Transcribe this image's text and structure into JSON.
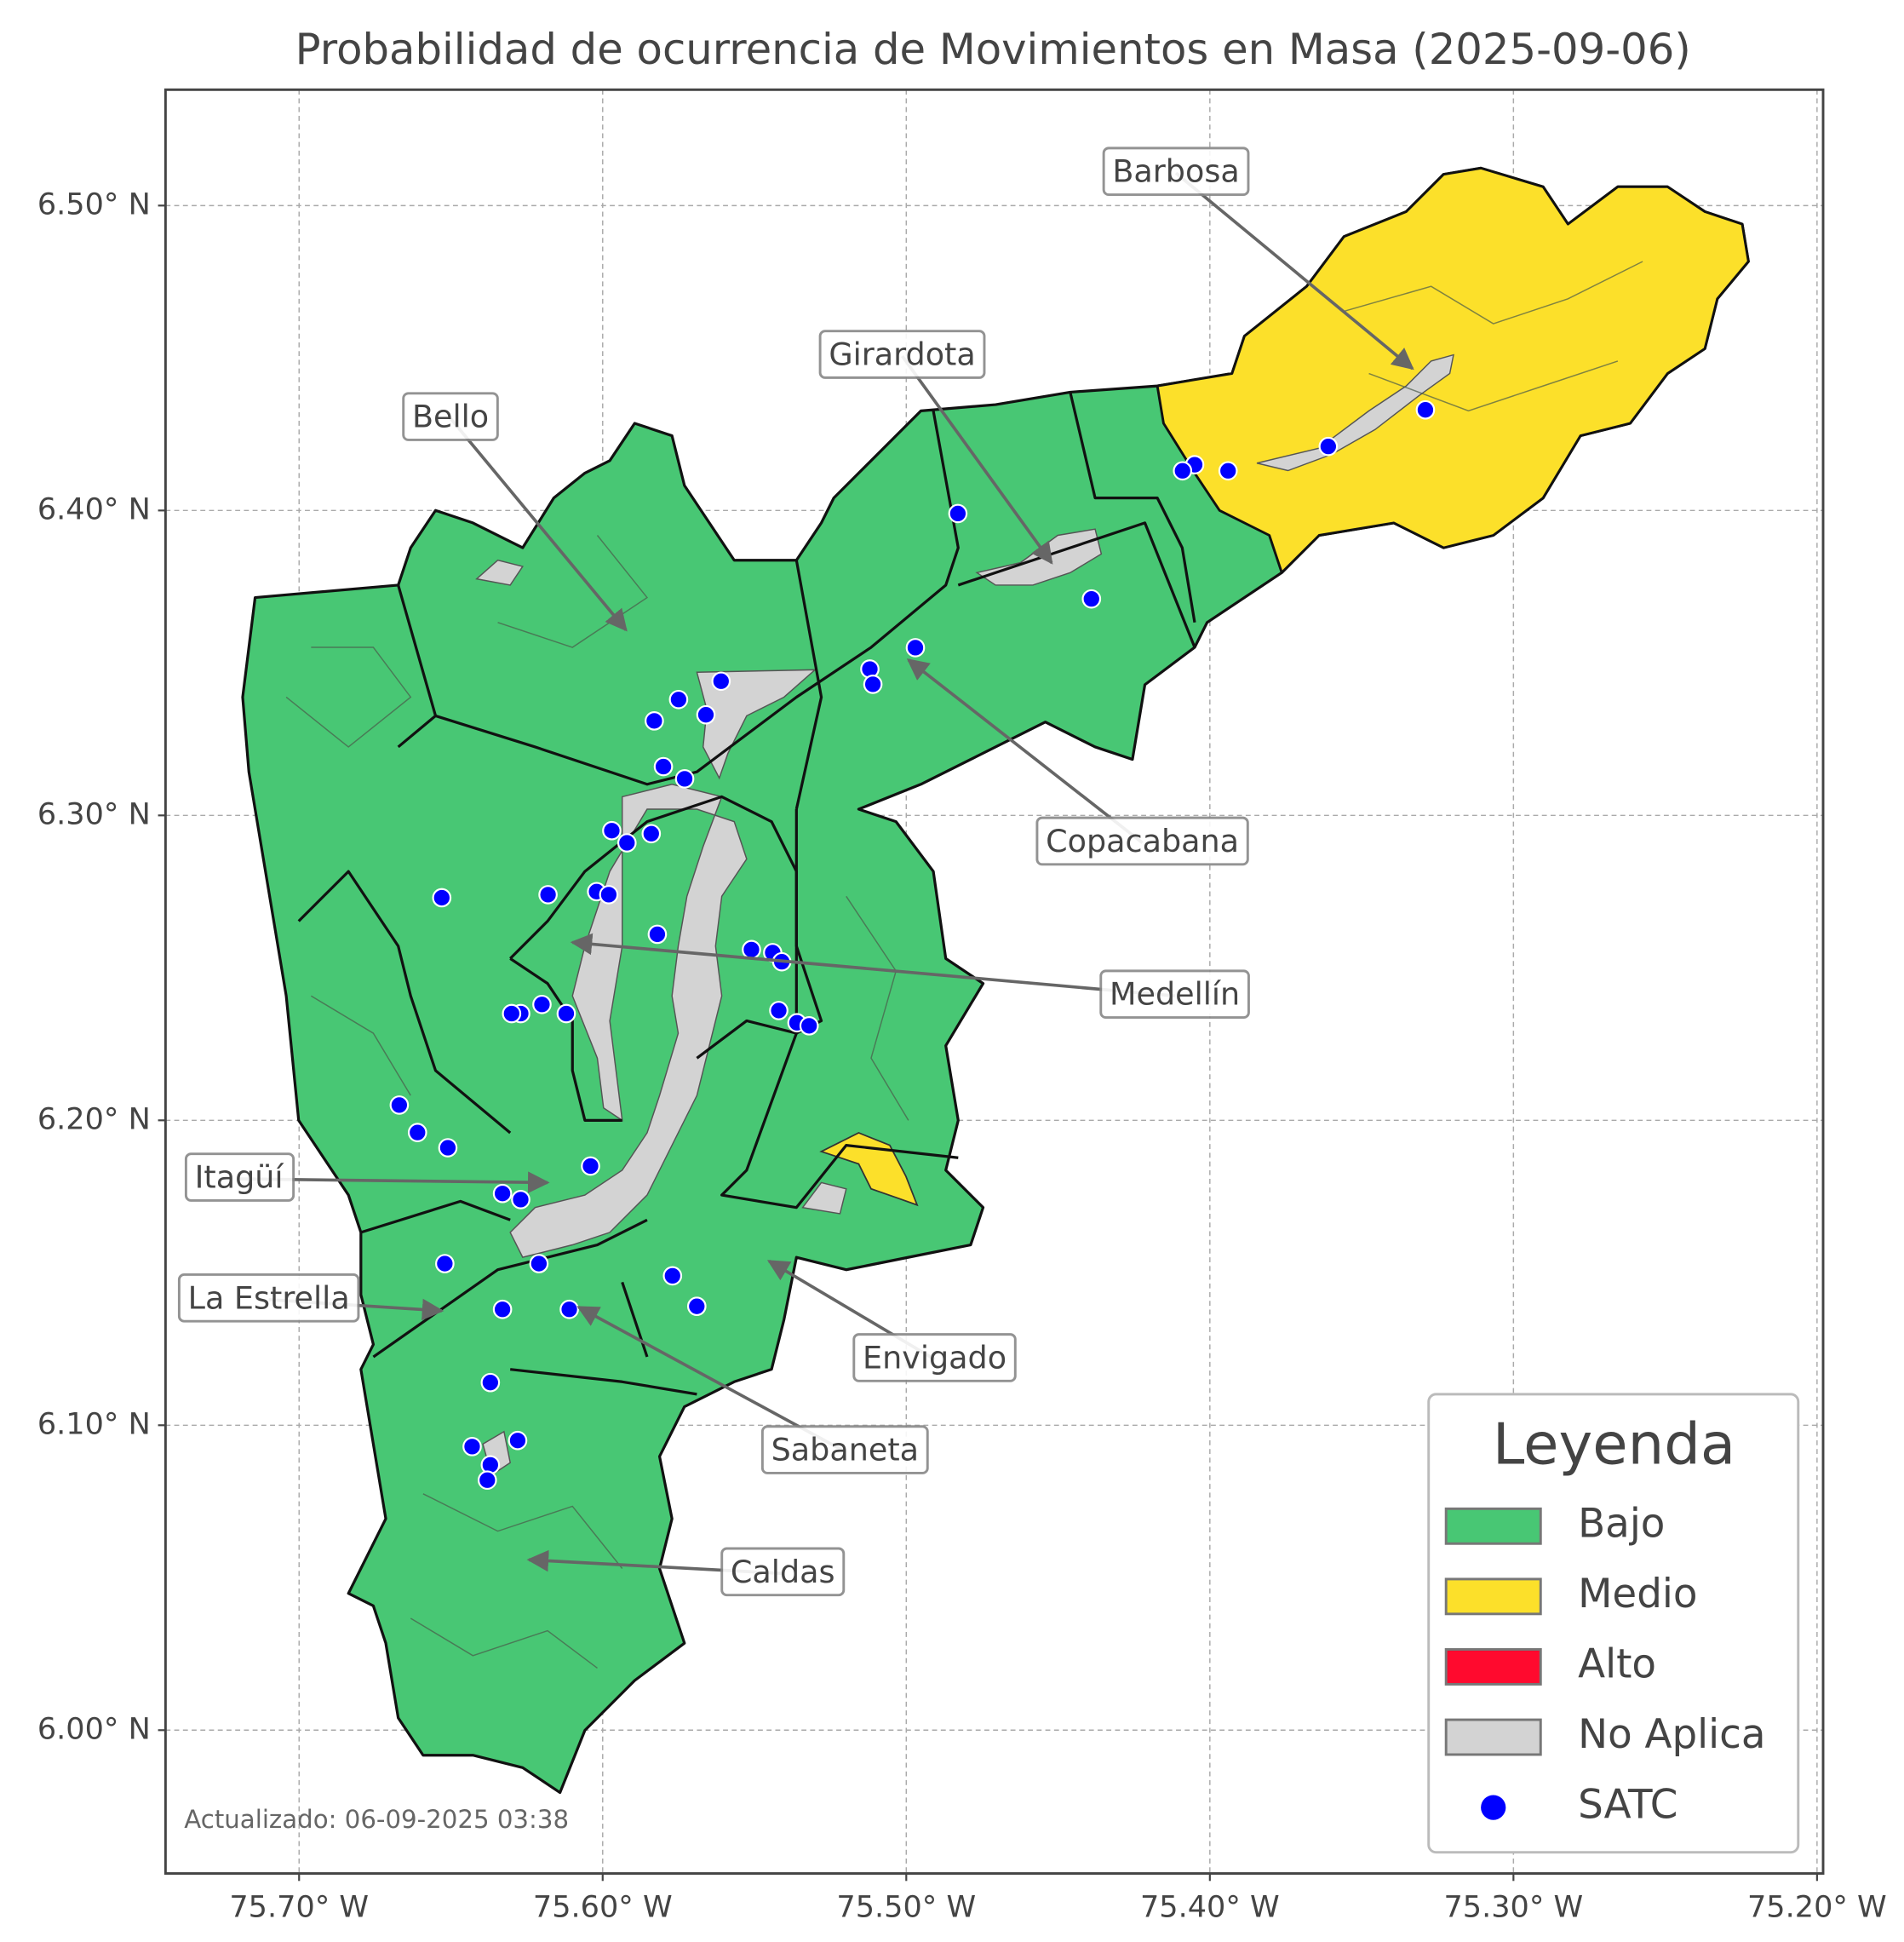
{
  "chart_data": {
    "type": "map",
    "title": "Probabilidad de ocurrencia de Movimientos en Masa (2025-09-06)",
    "xlim": [
      -75.744,
      -75.198
    ],
    "ylim": [
      5.953,
      6.538
    ],
    "xticks": [
      {
        "value": -75.7,
        "label": "75.70° W"
      },
      {
        "value": -75.6,
        "label": "75.60° W"
      },
      {
        "value": -75.5,
        "label": "75.50° W"
      },
      {
        "value": -75.4,
        "label": "75.40° W"
      },
      {
        "value": -75.3,
        "label": "75.30° W"
      },
      {
        "value": -75.2,
        "label": "75.20° W"
      }
    ],
    "yticks": [
      {
        "value": 6.0,
        "label": "6.00° N"
      },
      {
        "value": 6.1,
        "label": "6.10° N"
      },
      {
        "value": 6.2,
        "label": "6.20° N"
      },
      {
        "value": 6.3,
        "label": "6.30° N"
      },
      {
        "value": 6.4,
        "label": "6.40° N"
      },
      {
        "value": 6.5,
        "label": "6.50° N"
      }
    ],
    "grid": true,
    "annotations": [
      "Barbosa",
      "Girardota",
      "Bello",
      "Copacabana",
      "Medellín",
      "Itagüí",
      "La Estrella",
      "Envigado",
      "Sabaneta",
      "Caldas"
    ],
    "legend": {
      "title": "Leyenda",
      "corner": "lower right"
    },
    "levels": [
      {
        "name": "Bajo",
        "color": "#48c774"
      },
      {
        "name": "Medio",
        "color": "#fce02a"
      },
      {
        "name": "Alto",
        "color": "#ff0a2e"
      },
      {
        "name": "No Aplica",
        "color": "#d3d3d3"
      }
    ],
    "series": [
      {
        "name": "SATC",
        "color": "#0000ff",
        "lon": [
          -75.329,
          -75.361,
          -75.394,
          -75.405,
          -75.409,
          -75.483,
          -75.439,
          -75.497,
          -75.512,
          -75.511,
          -75.561,
          -75.575,
          -75.566,
          -75.583,
          -75.58,
          -75.573,
          -75.597,
          -75.592,
          -75.584,
          -75.653,
          -75.618,
          -75.602,
          -75.598,
          -75.582,
          -75.551,
          -75.544,
          -75.541,
          -75.542,
          -75.536,
          -75.532,
          -75.62,
          -75.627,
          -75.63,
          -75.612,
          -75.667,
          -75.661,
          -75.651,
          -75.604,
          -75.633,
          -75.627,
          -75.652,
          -75.621,
          -75.577,
          -75.569,
          -75.633,
          -75.611,
          -75.637,
          -75.643,
          -75.628,
          -75.637,
          -75.638
        ],
        "lat": [
          6.433,
          6.421,
          6.413,
          6.415,
          6.413,
          6.399,
          6.371,
          6.355,
          6.348,
          6.343,
          6.344,
          6.338,
          6.333,
          6.331,
          6.316,
          6.312,
          6.295,
          6.291,
          6.294,
          6.273,
          6.274,
          6.275,
          6.274,
          6.261,
          6.256,
          6.255,
          6.252,
          6.236,
          6.232,
          6.231,
          6.238,
          6.235,
          6.235,
          6.235,
          6.205,
          6.196,
          6.191,
          6.185,
          6.176,
          6.174,
          6.153,
          6.153,
          6.149,
          6.139,
          6.138,
          6.138,
          6.114,
          6.093,
          6.095,
          6.087,
          6.082
        ]
      }
    ],
    "note": "Actualizado: 06-09-2025 03:38"
  }
}
